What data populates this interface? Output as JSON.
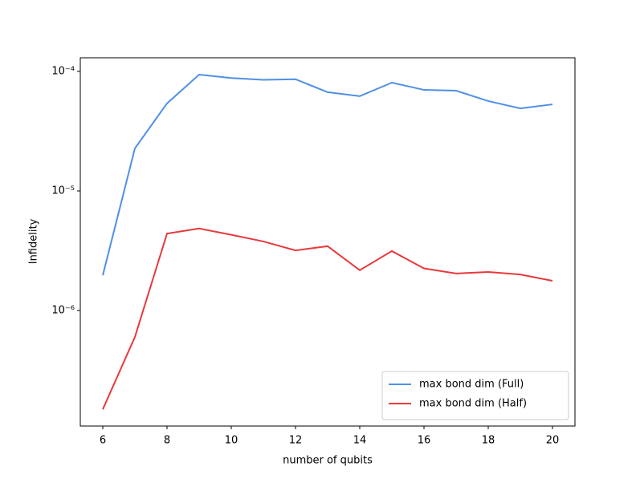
{
  "chart_data": {
    "type": "line",
    "x_label": "number of qubits",
    "y_label": "Infidelity",
    "x": [
      6,
      7,
      8,
      9,
      10,
      11,
      12,
      13,
      14,
      15,
      16,
      17,
      18,
      19,
      20
    ],
    "series": [
      {
        "name": "max bond dim (Full)",
        "color": "#4f8fe6",
        "values": [
          1.97e-06,
          2.27e-05,
          5.4e-05,
          9.4e-05,
          8.8e-05,
          8.5e-05,
          8.6e-05,
          6.7e-05,
          6.2e-05,
          8.05e-05,
          7e-05,
          6.9e-05,
          5.65e-05,
          4.9e-05,
          5.3e-05
        ]
      },
      {
        "name": "max bond dim (Half)",
        "color": "#e8393b",
        "values": [
          1.49e-07,
          6e-07,
          4.4e-06,
          4.85e-06,
          4.3e-06,
          3.78e-06,
          3.18e-06,
          3.45e-06,
          2.17e-06,
          3.14e-06,
          2.25e-06,
          2.04e-06,
          2.1e-06,
          2e-06,
          1.77e-06
        ]
      }
    ],
    "xlim": [
      5.3,
      20.7
    ],
    "xticks": [
      6,
      8,
      10,
      12,
      14,
      16,
      18,
      20
    ],
    "ylim": [
      1.08e-07,
      0.00013
    ],
    "y_scale": "log",
    "yticks": [
      {
        "value": 1e-06,
        "label": "10⁻⁶"
      },
      {
        "value": 1e-05,
        "label": "10⁻⁵"
      },
      {
        "value": 0.0001,
        "label": "10⁻⁴"
      }
    ],
    "legend": "lower right"
  }
}
